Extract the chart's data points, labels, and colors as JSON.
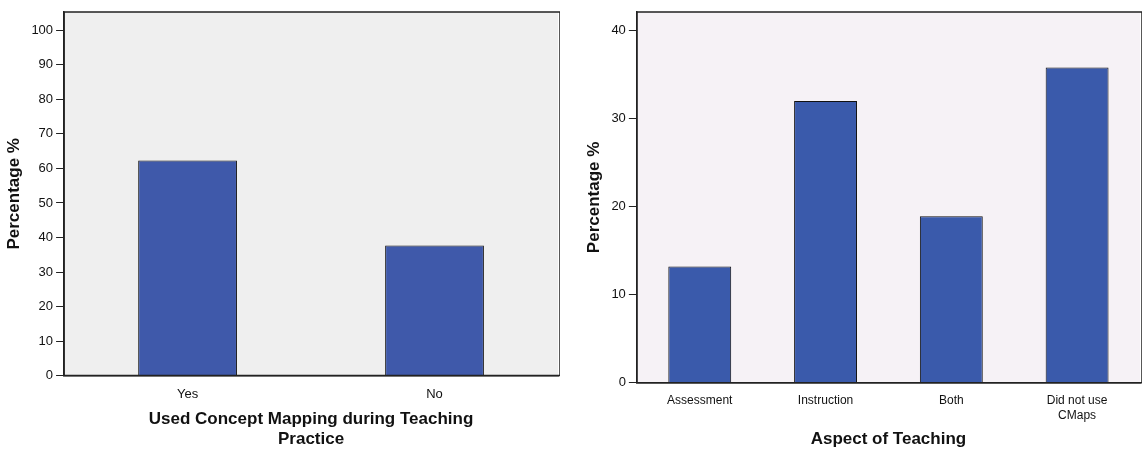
{
  "chart_data": [
    {
      "type": "bar",
      "xlabel": "Used Concept Mapping during Teaching Practice",
      "ylabel": "Percentage %",
      "categories": [
        "Yes",
        "No"
      ],
      "values": [
        62.3,
        37.7
      ],
      "color": "#3f59aa",
      "ylim": [
        0,
        105.3
      ],
      "yticks": [
        0,
        10,
        20,
        30,
        40,
        50,
        60,
        70,
        80,
        90,
        100
      ],
      "grid": false,
      "legend": false
    },
    {
      "type": "bar",
      "xlabel": "Aspect of Teaching",
      "ylabel": "Percentage %",
      "categories": [
        "Assessment",
        "Instruction",
        "Both",
        "Did not use CMaps"
      ],
      "values": [
        13.2,
        32.0,
        18.9,
        35.8
      ],
      "color": "#3a5aab",
      "ylim": [
        0,
        42.1
      ],
      "yticks": [
        0,
        10,
        20,
        30,
        40
      ],
      "grid": false,
      "legend": false
    }
  ]
}
